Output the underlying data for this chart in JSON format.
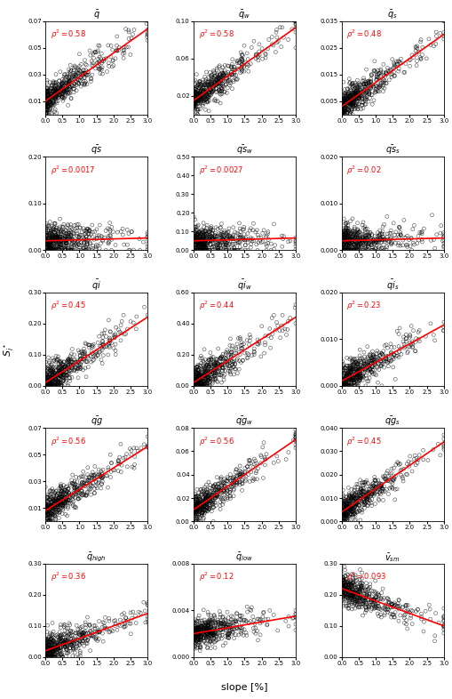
{
  "subplots": [
    {
      "title": "$\\bar{q}$",
      "rho2": 0.58,
      "ylim": [
        0.0,
        0.07
      ],
      "yticks": [
        0.01,
        0.03,
        0.05,
        0.07
      ],
      "slope_positive": true,
      "slope_val": 0.018,
      "intercept": 0.01
    },
    {
      "title": "$\\bar{q}_w$",
      "rho2": 0.58,
      "ylim": [
        0.0,
        0.1
      ],
      "yticks": [
        0.02,
        0.06,
        0.1
      ],
      "slope_positive": true,
      "slope_val": 0.026,
      "intercept": 0.015
    },
    {
      "title": "$\\bar{q}_s$",
      "rho2": 0.48,
      "ylim": [
        0.0,
        0.035
      ],
      "yticks": [
        0.005,
        0.015,
        0.025,
        0.035
      ],
      "slope_positive": true,
      "slope_val": 0.009,
      "intercept": 0.003
    },
    {
      "title": "$\\bar{qs}$",
      "rho2": 0.0017,
      "ylim": [
        0.0,
        0.2
      ],
      "yticks": [
        0.0,
        0.1,
        0.2
      ],
      "slope_positive": false,
      "slope_val": 0.002,
      "intercept": 0.02
    },
    {
      "title": "$\\bar{qs}_w$",
      "rho2": 0.0027,
      "ylim": [
        0.0,
        0.5
      ],
      "yticks": [
        0.0,
        0.1,
        0.2,
        0.3,
        0.4,
        0.5
      ],
      "slope_positive": false,
      "slope_val": 0.005,
      "intercept": 0.05
    },
    {
      "title": "$\\bar{qs}_s$",
      "rho2": 0.02,
      "ylim": [
        0.0,
        0.02
      ],
      "yticks": [
        0.0,
        0.01,
        0.02
      ],
      "slope_positive": false,
      "slope_val": 0.0002,
      "intercept": 0.002
    },
    {
      "title": "$\\bar{qi}$",
      "rho2": 0.45,
      "ylim": [
        0.0,
        0.3
      ],
      "yticks": [
        0.0,
        0.1,
        0.2,
        0.3
      ],
      "slope_positive": true,
      "slope_val": 0.07,
      "intercept": 0.01
    },
    {
      "title": "$\\bar{qi}_w$",
      "rho2": 0.44,
      "ylim": [
        0.0,
        0.6
      ],
      "yticks": [
        0.0,
        0.2,
        0.4,
        0.6
      ],
      "slope_positive": true,
      "slope_val": 0.14,
      "intercept": 0.02
    },
    {
      "title": "$\\bar{qi}_s$",
      "rho2": 0.23,
      "ylim": [
        0.0,
        0.02
      ],
      "yticks": [
        0.0,
        0.01,
        0.02
      ],
      "slope_positive": true,
      "slope_val": 0.004,
      "intercept": 0.001
    },
    {
      "title": "$\\bar{qg}$",
      "rho2": 0.56,
      "ylim": [
        0.0,
        0.07
      ],
      "yticks": [
        0.01,
        0.03,
        0.05,
        0.07
      ],
      "slope_positive": true,
      "slope_val": 0.016,
      "intercept": 0.008
    },
    {
      "title": "$\\bar{qg}_w$",
      "rho2": 0.56,
      "ylim": [
        0.0,
        0.08
      ],
      "yticks": [
        0.0,
        0.02,
        0.04,
        0.06,
        0.08
      ],
      "slope_positive": true,
      "slope_val": 0.02,
      "intercept": 0.01
    },
    {
      "title": "$\\bar{qg}_s$",
      "rho2": 0.45,
      "ylim": [
        0.0,
        0.04
      ],
      "yticks": [
        0.0,
        0.01,
        0.02,
        0.03,
        0.04
      ],
      "slope_positive": true,
      "slope_val": 0.01,
      "intercept": 0.004
    },
    {
      "title": "$\\bar{q}_{high}$",
      "rho2": 0.36,
      "ylim": [
        0.0,
        0.3
      ],
      "yticks": [
        0.0,
        0.1,
        0.2,
        0.3
      ],
      "slope_positive": true,
      "slope_val": 0.04,
      "intercept": 0.02
    },
    {
      "title": "$\\bar{q}_{low}$",
      "rho2": 0.12,
      "ylim": [
        0.0,
        0.008
      ],
      "yticks": [
        0.0,
        0.004,
        0.008
      ],
      "slope_positive": true,
      "slope_val": 0.0005,
      "intercept": 0.002
    },
    {
      "title": "$\\bar{v}_{sm}$",
      "rho2": 0.093,
      "ylim": [
        0.0,
        0.3
      ],
      "yticks": [
        0.0,
        0.1,
        0.2,
        0.3
      ],
      "slope_positive": false,
      "slope_val": -0.04,
      "intercept": 0.22
    }
  ],
  "n_cols": 3,
  "n_rows": 5,
  "xlim": [
    0.0,
    3.0
  ],
  "xticks": [
    0.0,
    0.5,
    1.0,
    1.5,
    2.0,
    2.5,
    3.0
  ],
  "xlabel": "slope [%]",
  "ylabel": "$S_i^\\star$",
  "scatter_color": "black",
  "line_color": "red",
  "rho_color": "red",
  "n_points": 500,
  "random_seed": 42
}
